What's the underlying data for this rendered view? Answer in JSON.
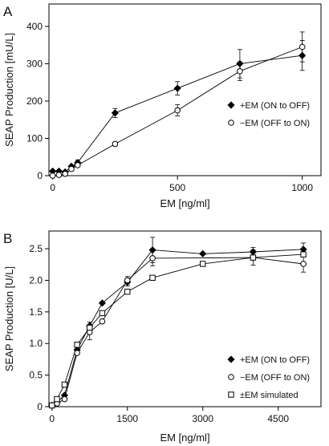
{
  "chart_data": [
    {
      "type": "line",
      "panel_label": "A",
      "xlabel": "EM [ng/ml]",
      "ylabel": "SEAP Production  [mU/L]",
      "xlim": [
        -15,
        1075
      ],
      "ylim": [
        0,
        460
      ],
      "xticks": [
        0,
        500,
        1000
      ],
      "yticks": [
        0,
        100,
        200,
        300,
        400
      ],
      "grid": false,
      "legend_position": "right-center",
      "series": [
        {
          "name": "+EM (ON to OFF)",
          "marker": "filled-diamond",
          "points": [
            {
              "x": 0,
              "y": 12,
              "err": 0
            },
            {
              "x": 25,
              "y": 12,
              "err": 0
            },
            {
              "x": 50,
              "y": 10,
              "err": 0
            },
            {
              "x": 75,
              "y": 25,
              "err": 0
            },
            {
              "x": 100,
              "y": 35,
              "err": 7
            },
            {
              "x": 250,
              "y": 168,
              "err": 12
            },
            {
              "x": 500,
              "y": 234,
              "err": 18
            },
            {
              "x": 750,
              "y": 300,
              "err": 38
            },
            {
              "x": 1000,
              "y": 322,
              "err": 40
            }
          ]
        },
        {
          "name": "−EM (OFF to ON)",
          "marker": "open-circle",
          "points": [
            {
              "x": 0,
              "y": 0,
              "err": 0
            },
            {
              "x": 25,
              "y": 2,
              "err": 0
            },
            {
              "x": 50,
              "y": 5,
              "err": 0
            },
            {
              "x": 75,
              "y": 18,
              "err": 0
            },
            {
              "x": 100,
              "y": 28,
              "err": 0
            },
            {
              "x": 250,
              "y": 85,
              "err": 5
            },
            {
              "x": 500,
              "y": 175,
              "err": 15
            },
            {
              "x": 750,
              "y": 280,
              "err": 25
            },
            {
              "x": 1000,
              "y": 345,
              "err": 40
            }
          ]
        }
      ]
    },
    {
      "type": "line",
      "panel_label": "B",
      "xlabel": "EM [ng/ml]",
      "ylabel": "SEAP Production  [U/L]",
      "xlim": [
        -60,
        5350
      ],
      "ylim": [
        0,
        2.78
      ],
      "xticks": [
        0,
        1500,
        3000,
        4500
      ],
      "yticks": [
        0,
        0.5,
        1.0,
        1.5,
        2.0,
        2.5
      ],
      "ytick_labels": [
        "0",
        "0.5",
        "1.0",
        "1.5",
        "2.0",
        "2.5"
      ],
      "grid": false,
      "legend_position": "right-bottom",
      "series": [
        {
          "name": "+EM (ON to OFF)",
          "marker": "filled-diamond",
          "points": [
            {
              "x": 0,
              "y": 0.02,
              "err": 0
            },
            {
              "x": 100,
              "y": 0.07,
              "err": 0
            },
            {
              "x": 250,
              "y": 0.18,
              "err": 0
            },
            {
              "x": 500,
              "y": 0.9,
              "err": 0
            },
            {
              "x": 750,
              "y": 1.28,
              "err": 0.06
            },
            {
              "x": 1000,
              "y": 1.64,
              "err": 0
            },
            {
              "x": 1500,
              "y": 1.97,
              "err": 0.06
            },
            {
              "x": 2000,
              "y": 2.48,
              "err": 0.2
            },
            {
              "x": 3000,
              "y": 2.42,
              "err": 0
            },
            {
              "x": 4000,
              "y": 2.45,
              "err": 0.07
            },
            {
              "x": 5000,
              "y": 2.49,
              "err": 0.1
            }
          ]
        },
        {
          "name": "−EM (OFF to ON)",
          "marker": "open-circle",
          "points": [
            {
              "x": 0,
              "y": 0.02,
              "err": 0
            },
            {
              "x": 100,
              "y": 0.05,
              "err": 0
            },
            {
              "x": 250,
              "y": 0.12,
              "err": 0
            },
            {
              "x": 500,
              "y": 0.85,
              "err": 0
            },
            {
              "x": 750,
              "y": 1.18,
              "err": 0.12
            },
            {
              "x": 1000,
              "y": 1.35,
              "err": 0
            },
            {
              "x": 1500,
              "y": 2.0,
              "err": 0.06
            },
            {
              "x": 2000,
              "y": 2.35,
              "err": 0.12
            },
            {
              "x": 4000,
              "y": 2.36,
              "err": 0.12
            },
            {
              "x": 5000,
              "y": 2.26,
              "err": 0.13
            }
          ]
        },
        {
          "name": "±EM simulated",
          "marker": "open-square",
          "points": [
            {
              "x": 0,
              "y": 0.02,
              "err": 0
            },
            {
              "x": 100,
              "y": 0.12,
              "err": 0
            },
            {
              "x": 250,
              "y": 0.35,
              "err": 0
            },
            {
              "x": 500,
              "y": 0.98,
              "err": 0
            },
            {
              "x": 750,
              "y": 1.25,
              "err": 0
            },
            {
              "x": 1000,
              "y": 1.48,
              "err": 0
            },
            {
              "x": 1500,
              "y": 1.82,
              "err": 0
            },
            {
              "x": 2000,
              "y": 2.04,
              "err": 0
            },
            {
              "x": 3000,
              "y": 2.26,
              "err": 0
            },
            {
              "x": 4000,
              "y": 2.36,
              "err": 0
            },
            {
              "x": 5000,
              "y": 2.41,
              "err": 0
            }
          ]
        }
      ]
    }
  ]
}
